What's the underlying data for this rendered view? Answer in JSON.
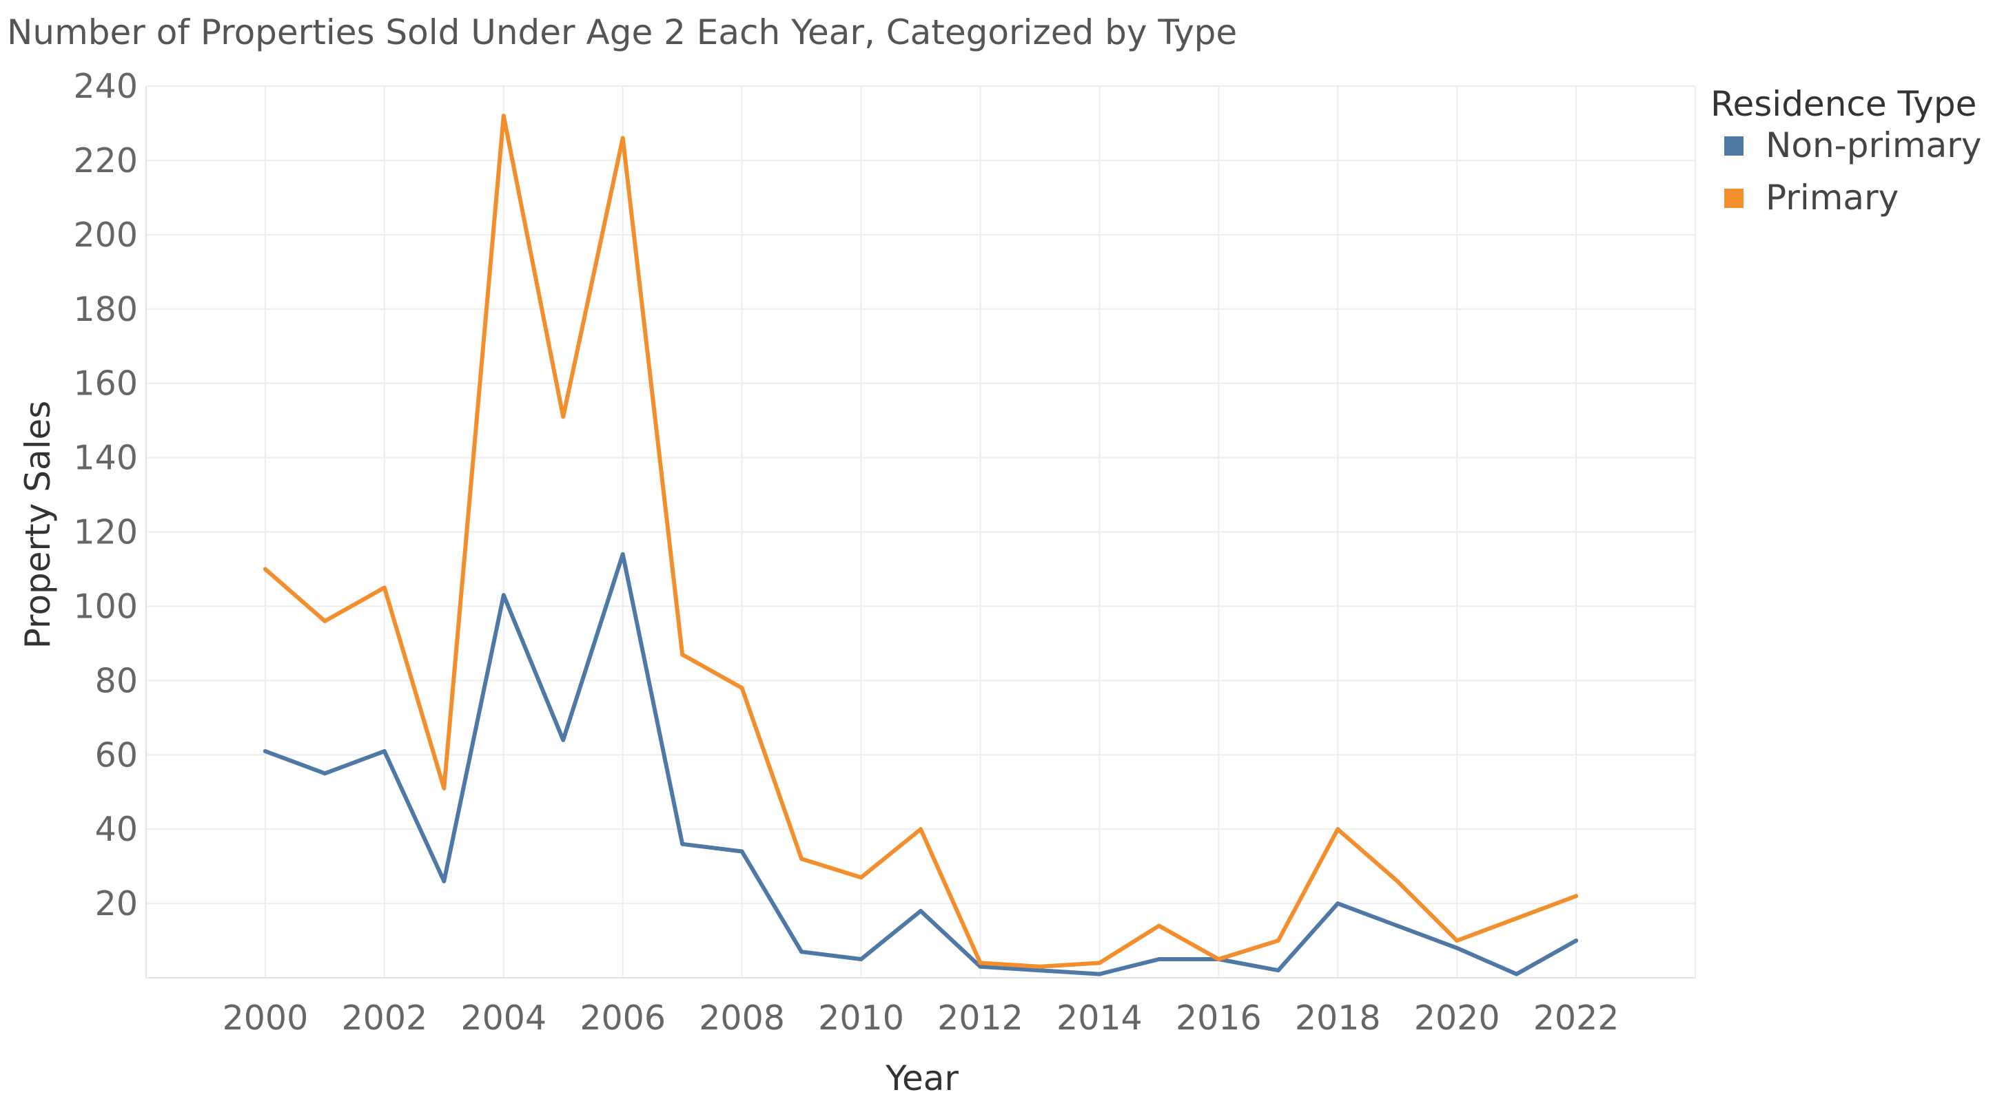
{
  "chart_data": {
    "type": "line",
    "title": "Number of Properties Sold Under Age 2 Each Year, Categorized by Type",
    "xlabel": "Year",
    "ylabel": "Property Sales",
    "x": [
      2000,
      2001,
      2002,
      2003,
      2004,
      2005,
      2006,
      2007,
      2008,
      2009,
      2010,
      2011,
      2012,
      2013,
      2014,
      2015,
      2016,
      2017,
      2018,
      2019,
      2020,
      2021,
      2022
    ],
    "xlim": [
      1998,
      2024
    ],
    "ylim": [
      0,
      240
    ],
    "x_ticks": [
      2000,
      2002,
      2004,
      2006,
      2008,
      2010,
      2012,
      2014,
      2016,
      2018,
      2020,
      2022
    ],
    "y_ticks": [
      20,
      40,
      60,
      80,
      100,
      120,
      140,
      160,
      180,
      200,
      220,
      240
    ],
    "grid": true,
    "legend": {
      "title": "Residence Type",
      "position": "top-right"
    },
    "series": [
      {
        "name": "Non-primary",
        "color": "#4e79a7",
        "values": [
          61,
          55,
          61,
          26,
          103,
          64,
          114,
          36,
          34,
          7,
          5,
          18,
          3,
          2,
          1,
          5,
          5,
          2,
          20,
          14,
          8,
          1,
          10
        ]
      },
      {
        "name": "Primary",
        "color": "#f28e2b",
        "values": [
          110,
          96,
          105,
          51,
          232,
          151,
          226,
          87,
          78,
          32,
          27,
          40,
          4,
          3,
          4,
          14,
          5,
          10,
          40,
          26,
          10,
          16,
          22
        ]
      }
    ]
  }
}
